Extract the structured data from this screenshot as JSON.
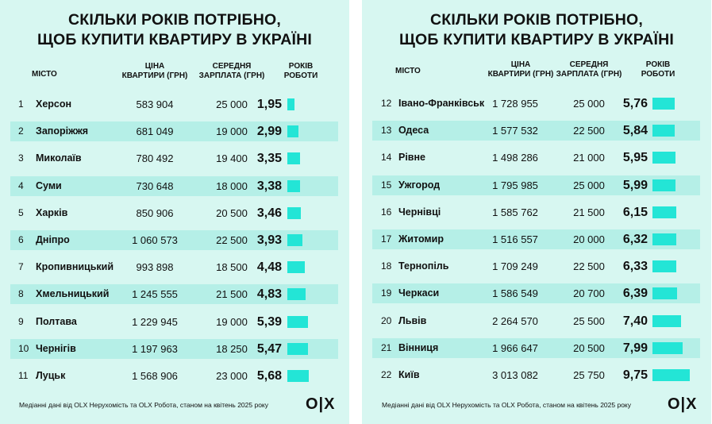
{
  "title_line1": "Скільки років потрібно,",
  "title_line2": "щоб купити квартиру в Україні",
  "headers": {
    "city": "Місто",
    "price": "Ціна\nквартири (грн)",
    "salary": "Середня\nзарплата (грн)",
    "years": "Років\nроботи"
  },
  "footnote": "Медіанні дані від OLX Нерухомість та OLX Робота, станом на квітень 2025 року",
  "logo": "O|X",
  "colors": {
    "background": "#d7f7f1",
    "row_alt": "#b5efe7",
    "bar": "#23e5d6"
  },
  "chart_data": [
    {
      "type": "table",
      "columns": [
        "",
        "Місто",
        "Ціна квартири (грн)",
        "Середня зарплата (грн)",
        "Років роботи"
      ],
      "rows": [
        {
          "rank": "1",
          "city": "Херсон",
          "price": "583 904",
          "salary": "25 000",
          "years": "1,95",
          "value": 1.95
        },
        {
          "rank": "2",
          "city": "Запоріжжя",
          "price": "681 049",
          "salary": "19 000",
          "years": "2,99",
          "value": 2.99
        },
        {
          "rank": "3",
          "city": "Миколаїв",
          "price": "780 492",
          "salary": "19 400",
          "years": "3,35",
          "value": 3.35
        },
        {
          "rank": "4",
          "city": "Суми",
          "price": "730 648",
          "salary": "18 000",
          "years": "3,38",
          "value": 3.38
        },
        {
          "rank": "5",
          "city": "Харків",
          "price": "850 906",
          "salary": "20 500",
          "years": "3,46",
          "value": 3.46
        },
        {
          "rank": "6",
          "city": "Дніпро",
          "price": "1 060 573",
          "salary": "22 500",
          "years": "3,93",
          "value": 3.93
        },
        {
          "rank": "7",
          "city": "Кропивницький",
          "price": "993 898",
          "salary": "18 500",
          "years": "4,48",
          "value": 4.48
        },
        {
          "rank": "8",
          "city": "Хмельницький",
          "price": "1 245 555",
          "salary": "21 500",
          "years": "4,83",
          "value": 4.83
        },
        {
          "rank": "9",
          "city": "Полтава",
          "price": "1 229 945",
          "salary": "19 000",
          "years": "5,39",
          "value": 5.39
        },
        {
          "rank": "10",
          "city": "Чернігів",
          "price": "1 197 963",
          "salary": "18 250",
          "years": "5,47",
          "value": 5.47
        },
        {
          "rank": "11",
          "city": "Луцьк",
          "price": "1 568 906",
          "salary": "23 000",
          "years": "5,68",
          "value": 5.68
        }
      ]
    },
    {
      "type": "table",
      "columns": [
        "",
        "Місто",
        "Ціна квартири (грн)",
        "Середня зарплата (грн)",
        "Років роботи"
      ],
      "rows": [
        {
          "rank": "12",
          "city": "Івано-Франківськ",
          "price": "1 728 955",
          "salary": "25 000",
          "years": "5,76",
          "value": 5.76
        },
        {
          "rank": "13",
          "city": "Одеса",
          "price": "1 577 532",
          "salary": "22 500",
          "years": "5,84",
          "value": 5.84
        },
        {
          "rank": "14",
          "city": "Рівне",
          "price": "1 498 286",
          "salary": "21 000",
          "years": "5,95",
          "value": 5.95
        },
        {
          "rank": "15",
          "city": "Ужгород",
          "price": "1 795 985",
          "salary": "25 000",
          "years": "5,99",
          "value": 5.99
        },
        {
          "rank": "16",
          "city": "Чернівці",
          "price": "1 585 762",
          "salary": "21 500",
          "years": "6,15",
          "value": 6.15
        },
        {
          "rank": "17",
          "city": "Житомир",
          "price": "1 516 557",
          "salary": "20 000",
          "years": "6,32",
          "value": 6.32
        },
        {
          "rank": "18",
          "city": "Тернопіль",
          "price": "1 709 249",
          "salary": "22 500",
          "years": "6,33",
          "value": 6.33
        },
        {
          "rank": "19",
          "city": "Черкаси",
          "price": "1 586 549",
          "salary": "20 700",
          "years": "6,39",
          "value": 6.39
        },
        {
          "rank": "20",
          "city": "Львів",
          "price": "2 264 570",
          "salary": "25 500",
          "years": "7,40",
          "value": 7.4
        },
        {
          "rank": "21",
          "city": "Вінниця",
          "price": "1 966 647",
          "salary": "20 500",
          "years": "7,99",
          "value": 7.99
        },
        {
          "rank": "22",
          "city": "Київ",
          "price": "3 013 082",
          "salary": "25 750",
          "years": "9,75",
          "value": 9.75
        }
      ]
    }
  ]
}
